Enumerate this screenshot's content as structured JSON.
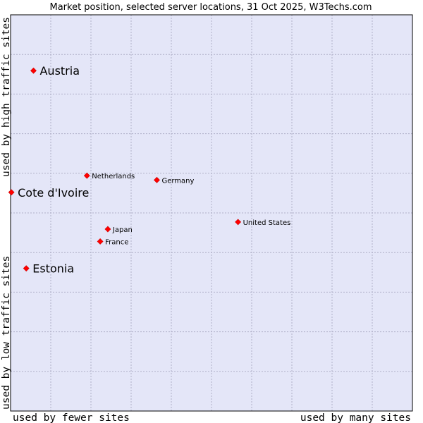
{
  "chart_data": {
    "type": "scatter",
    "title": "Market position, selected server locations, 31 Oct 2025, W3Techs.com",
    "xlabel_left": "used by fewer sites",
    "xlabel_right": "used by many sites",
    "ylabel_bottom": "used by low traffic sites",
    "ylabel_top": "used by high traffic sites",
    "xlim": [
      0,
      100
    ],
    "ylim": [
      0,
      100
    ],
    "grid": true,
    "points": [
      {
        "name": "Austria",
        "x": 5.7,
        "y": 85.9,
        "emphasis": true
      },
      {
        "name": "Cote d'Ivoire",
        "x": 0.2,
        "y": 55.2,
        "emphasis": true
      },
      {
        "name": "Estonia",
        "x": 3.9,
        "y": 36.0,
        "emphasis": true
      },
      {
        "name": "Netherlands",
        "x": 19.0,
        "y": 59.4,
        "emphasis": false
      },
      {
        "name": "Germany",
        "x": 36.4,
        "y": 58.3,
        "emphasis": false
      },
      {
        "name": "United States",
        "x": 56.6,
        "y": 47.7,
        "emphasis": false
      },
      {
        "name": "Japan",
        "x": 24.2,
        "y": 45.9,
        "emphasis": false
      },
      {
        "name": "France",
        "x": 22.3,
        "y": 42.8,
        "emphasis": false
      }
    ]
  },
  "colors": {
    "plot_background": "#e4e6f8",
    "grid": "#b0b0c8",
    "marker": "#ff0000",
    "frame": "#000000"
  }
}
